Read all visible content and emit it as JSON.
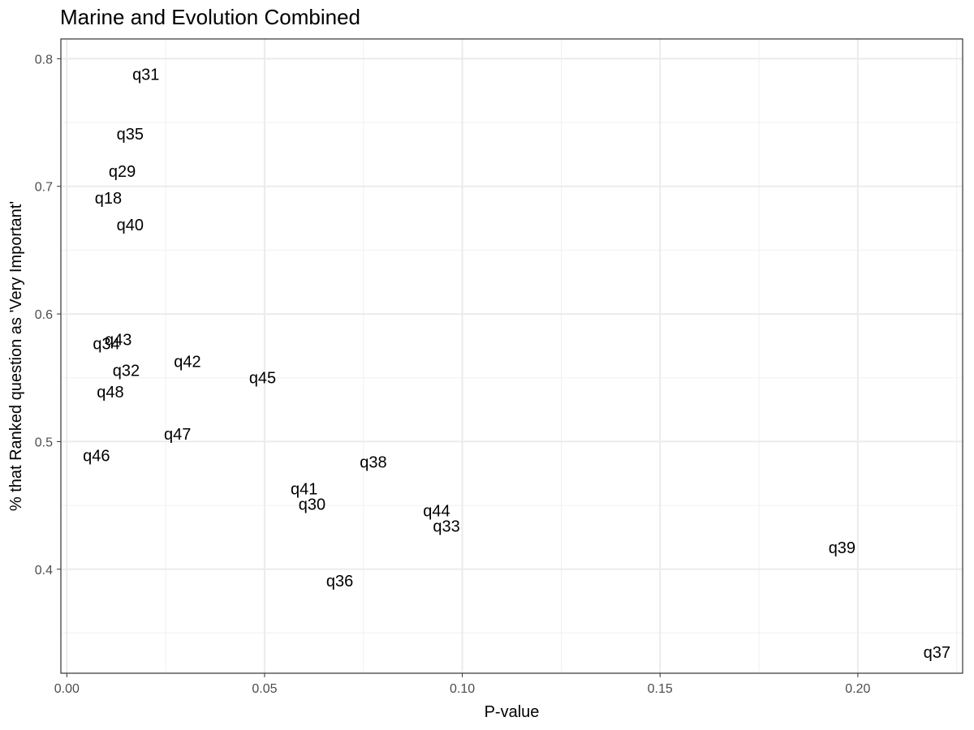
{
  "chart_data": {
    "type": "scatter",
    "title": "Marine and Evolution Combined",
    "xlabel": "P-value",
    "ylabel": "% that Ranked question as 'Very Important'",
    "xlim": [
      -0.0015,
      0.2265
    ],
    "ylim": [
      0.3185,
      0.8155
    ],
    "x_ticks": [
      0.0,
      0.05,
      0.1,
      0.15,
      0.2
    ],
    "x_tick_labels": [
      "0.00",
      "0.05",
      "0.10",
      "0.15",
      "0.20"
    ],
    "y_ticks": [
      0.4,
      0.5,
      0.6,
      0.7,
      0.8
    ],
    "y_tick_labels": [
      "0.4",
      "0.5",
      "0.6",
      "0.7",
      "0.8"
    ],
    "x_minor_ticks": [
      0.025,
      0.075,
      0.125,
      0.175,
      0.225
    ],
    "y_minor_ticks": [
      0.35,
      0.45,
      0.55,
      0.65,
      0.75
    ],
    "grid": true,
    "points": [
      {
        "label": "q31",
        "x": 0.02,
        "y": 0.788
      },
      {
        "label": "q35",
        "x": 0.016,
        "y": 0.741
      },
      {
        "label": "q29",
        "x": 0.014,
        "y": 0.712
      },
      {
        "label": "q18",
        "x": 0.0105,
        "y": 0.691
      },
      {
        "label": "q40",
        "x": 0.016,
        "y": 0.67
      },
      {
        "label": "q43",
        "x": 0.013,
        "y": 0.58
      },
      {
        "label": "q34",
        "x": 0.01,
        "y": 0.577
      },
      {
        "label": "q42",
        "x": 0.0305,
        "y": 0.563
      },
      {
        "label": "q32",
        "x": 0.015,
        "y": 0.556
      },
      {
        "label": "q45",
        "x": 0.0495,
        "y": 0.55
      },
      {
        "label": "q48",
        "x": 0.011,
        "y": 0.539
      },
      {
        "label": "q47",
        "x": 0.028,
        "y": 0.506
      },
      {
        "label": "q46",
        "x": 0.0075,
        "y": 0.489
      },
      {
        "label": "q38",
        "x": 0.0775,
        "y": 0.484
      },
      {
        "label": "q41",
        "x": 0.06,
        "y": 0.463
      },
      {
        "label": "q30",
        "x": 0.062,
        "y": 0.451
      },
      {
        "label": "q44",
        "x": 0.0935,
        "y": 0.446
      },
      {
        "label": "q33",
        "x": 0.096,
        "y": 0.434
      },
      {
        "label": "q39",
        "x": 0.196,
        "y": 0.417
      },
      {
        "label": "q36",
        "x": 0.069,
        "y": 0.391
      },
      {
        "label": "q37",
        "x": 0.22,
        "y": 0.335
      }
    ]
  }
}
